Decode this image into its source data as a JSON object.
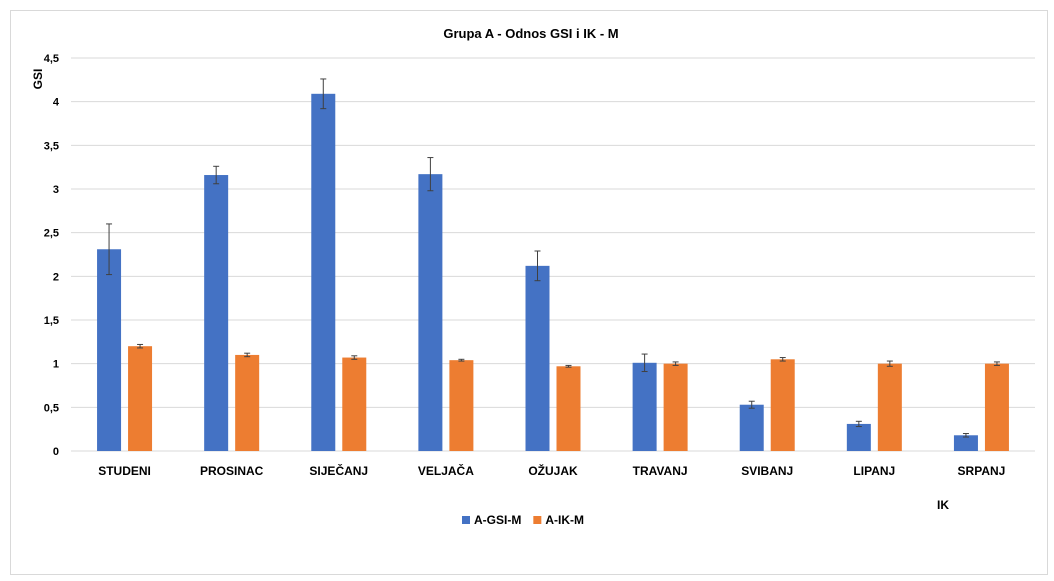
{
  "chart_data": {
    "type": "bar",
    "title": "Grupa A - Odnos GSI i IK - M",
    "ylabel": "GSI",
    "xlabel": "IK",
    "ylim": [
      0,
      4.5
    ],
    "ytick_step": 0.5,
    "yticks": [
      "0",
      "0,5",
      "1",
      "1,5",
      "2",
      "2,5",
      "3",
      "3,5",
      "4",
      "4,5"
    ],
    "grid": true,
    "legend_position": "bottom",
    "categories": [
      "STUDENI",
      "PROSINAC",
      "SIJEČANJ",
      "VELJAČA",
      "OŽUJAK",
      "TRAVANJ",
      "SVIBANJ",
      "LIPANJ",
      "SRPANJ"
    ],
    "series": [
      {
        "name": "A-GSI-M",
        "color": "#4472c4",
        "values": [
          2.31,
          3.16,
          4.09,
          3.17,
          2.12,
          1.01,
          0.53,
          0.31,
          0.18
        ],
        "errors": [
          0.29,
          0.1,
          0.17,
          0.19,
          0.17,
          0.1,
          0.04,
          0.03,
          0.02
        ]
      },
      {
        "name": "A-IK-M",
        "color": "#ed7d31",
        "values": [
          1.2,
          1.1,
          1.07,
          1.04,
          0.97,
          1.0,
          1.05,
          1.0,
          1.0
        ],
        "errors": [
          0.02,
          0.02,
          0.02,
          0.01,
          0.01,
          0.02,
          0.02,
          0.03,
          0.02
        ]
      }
    ]
  }
}
